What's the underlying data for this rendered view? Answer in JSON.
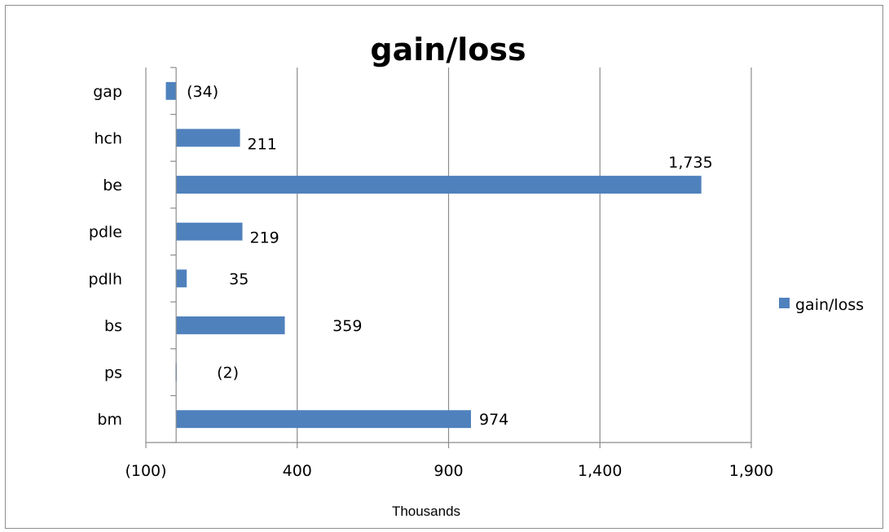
{
  "chart_data": {
    "type": "bar",
    "orientation": "horizontal",
    "title": "gain/loss",
    "categories": [
      "gap",
      "hch",
      "be",
      "pdle",
      "pdlh",
      "bs",
      "ps",
      "bm"
    ],
    "series": [
      {
        "name": "gain/loss",
        "color": "#4f81bd",
        "values": [
          -34,
          211,
          1735,
          219,
          35,
          359,
          -2,
          974
        ],
        "labels": [
          "(34)",
          "211",
          "1,735",
          "219",
          "35",
          "359",
          "(2)",
          "974"
        ]
      }
    ],
    "xlim": [
      -100,
      1900
    ],
    "xticks": [
      -100,
      400,
      900,
      1400,
      1900
    ],
    "xtick_labels": [
      "(100)",
      "400",
      "900",
      "1,400",
      "1,900"
    ],
    "xunit": "Thousands",
    "grid": "vertical major",
    "legend": "right"
  }
}
